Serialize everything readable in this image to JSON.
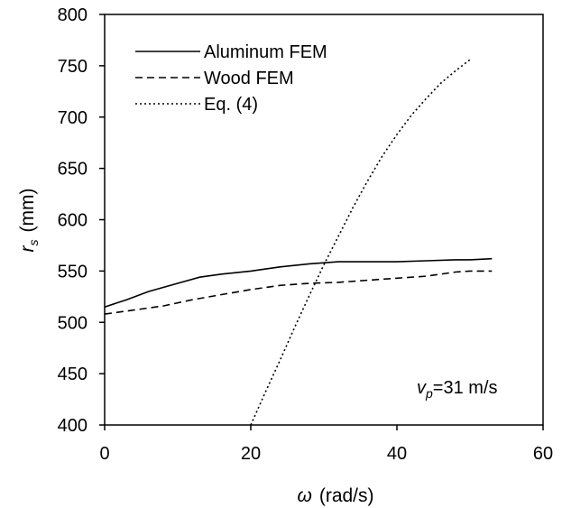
{
  "chart_data": {
    "type": "line",
    "xlabel_symbol": "ω",
    "xlabel_unit": "(rad/s)",
    "ylabel_symbol": "r",
    "ylabel_subscript": "s",
    "ylabel_unit": "(mm)",
    "xlim": [
      0,
      60
    ],
    "ylim": [
      400,
      800
    ],
    "x_ticks": [
      0,
      20,
      40,
      60
    ],
    "y_ticks": [
      400,
      450,
      500,
      550,
      600,
      650,
      700,
      750,
      800
    ],
    "grid": false,
    "legend_position": "top-left",
    "annotation": {
      "symbol": "v",
      "subscript": "p",
      "value_text": "=31 m/s"
    },
    "series": [
      {
        "name": "Aluminum FEM",
        "dash": "solid",
        "x": [
          0,
          3,
          6,
          10,
          13,
          16,
          20,
          24,
          28,
          32,
          36,
          40,
          44,
          48,
          50,
          53
        ],
        "y": [
          515,
          522,
          530,
          538,
          544,
          547,
          550,
          554,
          557,
          559,
          559,
          559,
          560,
          561,
          561,
          562
        ]
      },
      {
        "name": "Wood FEM",
        "dash": "dashed",
        "x": [
          0,
          4,
          8,
          12,
          16,
          20,
          24,
          28,
          32,
          36,
          40,
          44,
          48,
          50,
          53
        ],
        "y": [
          508,
          512,
          516,
          522,
          527,
          532,
          536,
          538,
          539,
          541,
          543,
          545,
          549,
          550,
          550
        ]
      },
      {
        "name": "Eq. (4)",
        "dash": "dotted",
        "x": [
          20,
          22,
          24,
          26,
          28,
          30,
          32,
          34,
          36,
          38,
          40,
          42,
          44,
          46,
          48,
          50
        ],
        "y": [
          400,
          432,
          463,
          495,
          526,
          556,
          584,
          612,
          638,
          662,
          683,
          702,
          718,
          733,
          745,
          756
        ]
      }
    ]
  }
}
